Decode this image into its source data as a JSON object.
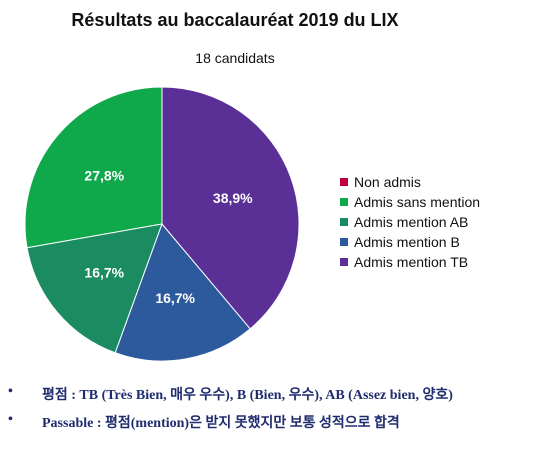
{
  "chart_data": {
    "type": "pie",
    "title": "Résultats au baccalauréat 2019 du LIX",
    "subtitle": "18 candidats",
    "slices": [
      {
        "name": "Non admis",
        "value": 0,
        "label": "",
        "color": "#c0003c"
      },
      {
        "name": "Admis sans mention",
        "value": 27.8,
        "label": "27,8%",
        "color": "#0fa84a"
      },
      {
        "name": "Admis mention AB",
        "value": 16.7,
        "label": "16,7%",
        "color": "#1b8b61"
      },
      {
        "name": "Admis mention B",
        "value": 16.7,
        "label": "16,7%",
        "color": "#2c5a9c"
      },
      {
        "name": "Admis mention TB",
        "value": 38.9,
        "label": "38,9%",
        "color": "#5a2f96"
      }
    ],
    "legend_position": "right"
  },
  "notes": [
    {
      "bullet": "•",
      "text": "평점 : TB (Très Bien, 매우 우수), B (Bien, 우수), AB (Assez bien, 양호)"
    },
    {
      "bullet": "•",
      "text": "Passable : 평점(mention)은 받지 못했지만 보통 성적으로 합격"
    }
  ]
}
